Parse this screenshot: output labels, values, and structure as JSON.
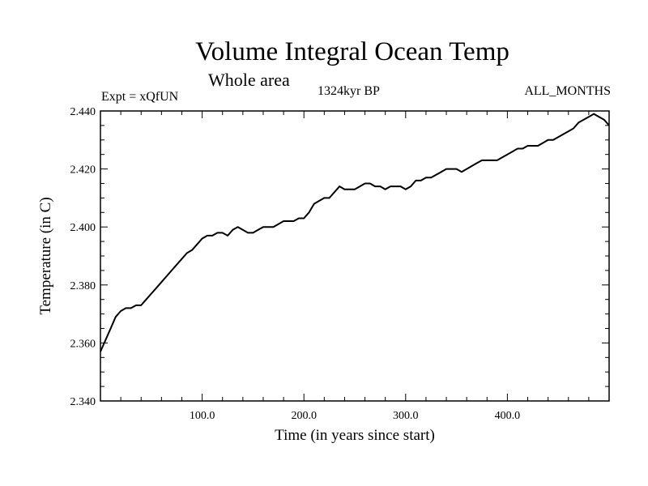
{
  "chart_data": {
    "type": "line",
    "title": "Volume Integral Ocean Temp",
    "subtitle": "Whole area",
    "left_label": "Expt = xQfUN",
    "center_label": "1324kyr BP",
    "right_label": "ALL_MONTHS",
    "xlabel": "Time (in years since start)",
    "ylabel": "Temperature (in C)",
    "xlim": [
      0,
      500
    ],
    "ylim": [
      2.34,
      2.44
    ],
    "x_ticks": [
      100,
      200,
      300,
      400
    ],
    "x_tick_labels": [
      "100.0",
      "200.0",
      "300.0",
      "400.0"
    ],
    "y_ticks": [
      2.34,
      2.36,
      2.38,
      2.4,
      2.42,
      2.44
    ],
    "y_tick_labels": [
      "2.340",
      "2.360",
      "2.380",
      "2.400",
      "2.420",
      "2.440"
    ],
    "series": [
      {
        "name": "Volume integral ocean temperature",
        "x": [
          0,
          5,
          10,
          15,
          20,
          25,
          30,
          35,
          40,
          45,
          50,
          55,
          60,
          65,
          70,
          75,
          80,
          85,
          90,
          95,
          100,
          105,
          110,
          115,
          120,
          125,
          130,
          135,
          140,
          145,
          150,
          155,
          160,
          165,
          170,
          175,
          180,
          185,
          190,
          195,
          200,
          205,
          210,
          215,
          220,
          225,
          230,
          235,
          240,
          245,
          250,
          255,
          260,
          265,
          270,
          275,
          280,
          285,
          290,
          295,
          300,
          305,
          310,
          315,
          320,
          325,
          330,
          335,
          340,
          345,
          350,
          355,
          360,
          365,
          370,
          375,
          380,
          385,
          390,
          395,
          400,
          405,
          410,
          415,
          420,
          425,
          430,
          435,
          440,
          445,
          450,
          455,
          460,
          465,
          470,
          475,
          480,
          485,
          490,
          495,
          500
        ],
        "y": [
          2.357,
          2.361,
          2.365,
          2.369,
          2.371,
          2.372,
          2.372,
          2.373,
          2.373,
          2.375,
          2.377,
          2.379,
          2.381,
          2.383,
          2.385,
          2.387,
          2.389,
          2.391,
          2.392,
          2.394,
          2.396,
          2.397,
          2.397,
          2.398,
          2.398,
          2.397,
          2.399,
          2.4,
          2.399,
          2.398,
          2.398,
          2.399,
          2.4,
          2.4,
          2.4,
          2.401,
          2.402,
          2.402,
          2.402,
          2.403,
          2.403,
          2.405,
          2.408,
          2.409,
          2.41,
          2.41,
          2.412,
          2.414,
          2.413,
          2.413,
          2.413,
          2.414,
          2.415,
          2.415,
          2.414,
          2.414,
          2.413,
          2.414,
          2.414,
          2.414,
          2.413,
          2.414,
          2.416,
          2.416,
          2.417,
          2.417,
          2.418,
          2.419,
          2.42,
          2.42,
          2.42,
          2.419,
          2.42,
          2.421,
          2.422,
          2.423,
          2.423,
          2.423,
          2.423,
          2.424,
          2.425,
          2.426,
          2.427,
          2.427,
          2.428,
          2.428,
          2.428,
          2.429,
          2.43,
          2.43,
          2.431,
          2.432,
          2.433,
          2.434,
          2.436,
          2.437,
          2.438,
          2.439,
          2.438,
          2.437,
          2.435
        ]
      }
    ],
    "colors": {
      "line": "#000000",
      "axis": "#000000",
      "background": "#ffffff"
    }
  }
}
